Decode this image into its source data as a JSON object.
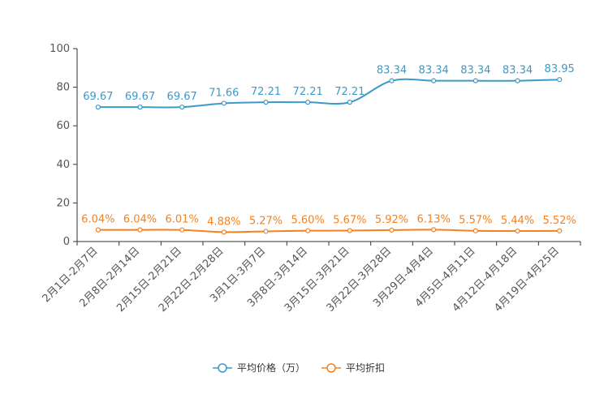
{
  "chart_data": {
    "type": "line",
    "title": "",
    "xlabel": "",
    "ylabel": "",
    "ylim": [
      0,
      100
    ],
    "yticks": [
      0,
      20,
      40,
      60,
      80,
      100
    ],
    "grid": false,
    "legend_position": "bottom-center",
    "categories": [
      "2月1日-2月7日",
      "2月8日-2月14日",
      "2月15日-2月21日",
      "2月22日-2月28日",
      "3月1日-3月7日",
      "3月8日-3月14日",
      "3月15日-3月21日",
      "3月22日-3月28日",
      "3月29日-4月4日",
      "4月5日-4月11日",
      "4月12日-4月18日",
      "4月19日-4月25日"
    ],
    "series": [
      {
        "name": "平均价格（万）",
        "color": "#3b9ac8",
        "values": [
          69.67,
          69.67,
          69.67,
          71.66,
          72.21,
          72.21,
          72.21,
          83.34,
          83.34,
          83.34,
          83.34,
          83.95
        ],
        "labels": [
          "69.67",
          "69.67",
          "69.67",
          "71.66",
          "72.21",
          "72.21",
          "72.21",
          "83.34",
          "83.34",
          "83.34",
          "83.34",
          "83.95"
        ]
      },
      {
        "name": "平均折扣",
        "color": "#f5811f",
        "values": [
          6.04,
          6.04,
          6.01,
          4.88,
          5.27,
          5.6,
          5.67,
          5.92,
          6.13,
          5.57,
          5.44,
          5.52
        ],
        "labels": [
          "6.04%",
          "6.04%",
          "6.01%",
          "4.88%",
          "5.27%",
          "5.60%",
          "5.67%",
          "5.92%",
          "6.13%",
          "5.57%",
          "5.44%",
          "5.52%"
        ]
      }
    ]
  }
}
